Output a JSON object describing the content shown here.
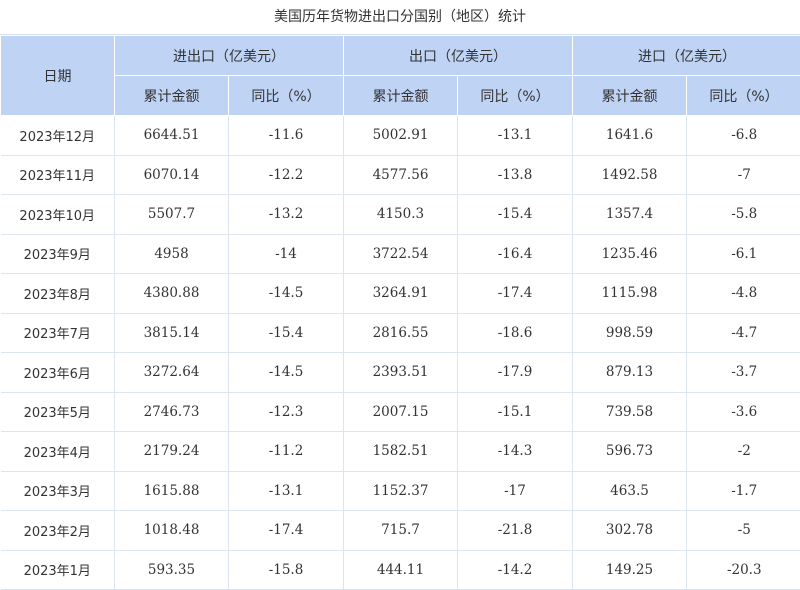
{
  "title": "美国历年货物进出口分国别（地区）统计",
  "headers": {
    "date": "日期",
    "groups": [
      "进出口（亿美元）",
      "出口（亿美元）",
      "进口（亿美元）"
    ],
    "sub": [
      "累计金额",
      "同比（%）",
      "累计金额",
      "同比（%）",
      "累计金额",
      "同比（%）"
    ]
  },
  "rows": [
    {
      "date": "2023年12月",
      "cells": [
        "6644.51",
        "-11.6",
        "5002.91",
        "-13.1",
        "1641.6",
        "-6.8"
      ]
    },
    {
      "date": "2023年11月",
      "cells": [
        "6070.14",
        "-12.2",
        "4577.56",
        "-13.8",
        "1492.58",
        "-7"
      ]
    },
    {
      "date": "2023年10月",
      "cells": [
        "5507.7",
        "-13.2",
        "4150.3",
        "-15.4",
        "1357.4",
        "-5.8"
      ]
    },
    {
      "date": "2023年9月",
      "cells": [
        "4958",
        "-14",
        "3722.54",
        "-16.4",
        "1235.46",
        "-6.1"
      ]
    },
    {
      "date": "2023年8月",
      "cells": [
        "4380.88",
        "-14.5",
        "3264.91",
        "-17.4",
        "1115.98",
        "-4.8"
      ]
    },
    {
      "date": "2023年7月",
      "cells": [
        "3815.14",
        "-15.4",
        "2816.55",
        "-18.6",
        "998.59",
        "-4.7"
      ]
    },
    {
      "date": "2023年6月",
      "cells": [
        "3272.64",
        "-14.5",
        "2393.51",
        "-17.9",
        "879.13",
        "-3.7"
      ]
    },
    {
      "date": "2023年5月",
      "cells": [
        "2746.73",
        "-12.3",
        "2007.15",
        "-15.1",
        "739.58",
        "-3.6"
      ]
    },
    {
      "date": "2023年4月",
      "cells": [
        "2179.24",
        "-11.2",
        "1582.51",
        "-14.3",
        "596.73",
        "-2"
      ]
    },
    {
      "date": "2023年3月",
      "cells": [
        "1615.88",
        "-13.1",
        "1152.37",
        "-17",
        "463.5",
        "-1.7"
      ]
    },
    {
      "date": "2023年2月",
      "cells": [
        "1018.48",
        "-17.4",
        "715.7",
        "-21.8",
        "302.78",
        "-5"
      ]
    },
    {
      "date": "2023年1月",
      "cells": [
        "593.35",
        "-15.8",
        "444.11",
        "-14.2",
        "149.25",
        "-20.3"
      ]
    }
  ]
}
